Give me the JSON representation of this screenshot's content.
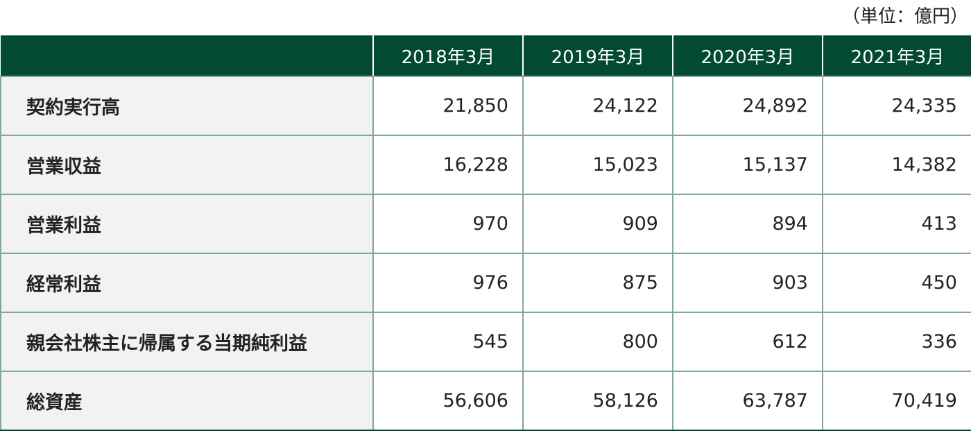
{
  "unit_note": "（単位：億円）",
  "headers": [
    "",
    "2018年3月",
    "2019年3月",
    "2020年3月",
    "2021年3月"
  ],
  "rows": [
    {
      "label": "契約実行高",
      "values": [
        "21,850",
        "24,122",
        "24,892",
        "24,335"
      ]
    },
    {
      "label": "営業収益",
      "values": [
        "16,228",
        "15,023",
        "15,137",
        "14,382"
      ]
    },
    {
      "label": "営業利益",
      "values": [
        "970",
        "909",
        "894",
        "413"
      ]
    },
    {
      "label": "経常利益",
      "values": [
        "976",
        "875",
        "903",
        "450"
      ]
    },
    {
      "label": "親会社株主に帰属する当期純利益",
      "values": [
        "545",
        "800",
        "612",
        "336"
      ]
    },
    {
      "label": "総資産",
      "values": [
        "56,606",
        "58,126",
        "63,787",
        "70,419"
      ]
    }
  ],
  "colors": {
    "header_bg": "#024a33",
    "header_text": "#ffffff",
    "label_bg": "#f2f2f2",
    "grid_line": "#7fa996"
  }
}
